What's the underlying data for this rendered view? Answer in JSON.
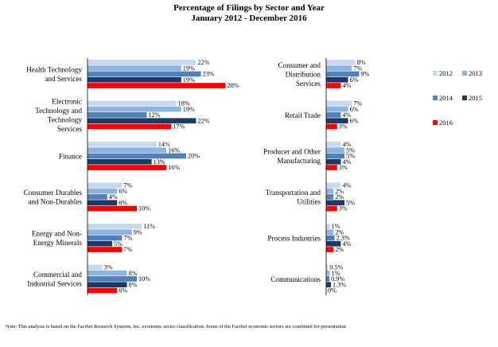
{
  "title": "Percentage of Filings by Sector and Year",
  "subtitle": "January 2012 - December 2016",
  "note": "Note: This analysis is based on the FactSet Research Systems, Inc. economic sector classification. Some of the FactSet economic sectors are combined for presentation.",
  "chart_data": {
    "type": "bar",
    "orientation": "horizontal",
    "title": "Percentage of Filings by Sector and Year",
    "subtitle": "January 2012 - December 2016",
    "legend_placement": "right",
    "grid": false,
    "series_names": [
      "2012",
      "2013",
      "2014",
      "2015",
      "2016"
    ],
    "series_colors": [
      "#c6d9f1",
      "#8db4e2",
      "#4f81bd",
      "#1f3864",
      "#ff0000"
    ],
    "panels": [
      {
        "xlim": [
          0,
          30
        ],
        "groups": [
          {
            "category": [
              "Health Technology",
              "and Services"
            ],
            "values": [
              22,
              19,
              23,
              19,
              28
            ],
            "labels": [
              "22%",
              "19%",
              "23%",
              "19%",
              "28%"
            ]
          },
          {
            "category": [
              "Electronic",
              "Technology and",
              "Technology",
              "Services"
            ],
            "values": [
              18,
              19,
              12,
              22,
              17
            ],
            "labels": [
              "18%",
              "19%",
              "12%",
              "22%",
              "17%"
            ]
          },
          {
            "category": [
              "Finance"
            ],
            "values": [
              14,
              16,
              20,
              13,
              16
            ],
            "labels": [
              "14%",
              "16%",
              "20%",
              "13%",
              "16%"
            ]
          },
          {
            "category": [
              "Consumer Durables",
              "and Non-Durables"
            ],
            "values": [
              7,
              6,
              4,
              6,
              10
            ],
            "labels": [
              "7%",
              "6%",
              "4%",
              "6%",
              "10%"
            ]
          },
          {
            "category": [
              "Energy and Non-",
              "Energy Minerals"
            ],
            "values": [
              11,
              9,
              7,
              5,
              7
            ],
            "labels": [
              "11%",
              "9%",
              "7%",
              "5%",
              "7%"
            ]
          },
          {
            "category": [
              "Commercial and",
              "Industrial Services"
            ],
            "values": [
              3,
              8,
              10,
              8,
              6
            ],
            "labels": [
              "3%",
              "8%",
              "10%",
              "8%",
              "6%"
            ]
          }
        ]
      },
      {
        "xlim": [
          0,
          30
        ],
        "groups": [
          {
            "category": [
              "Consumer and",
              "Distribution",
              "Services"
            ],
            "values": [
              8,
              7,
              9,
              6,
              4
            ],
            "labels": [
              "8%",
              "7%",
              "9%",
              "6%",
              "4%"
            ]
          },
          {
            "category": [
              "Retail Trade"
            ],
            "values": [
              7,
              6,
              4,
              6,
              3
            ],
            "labels": [
              "7%",
              "6%",
              "4%",
              "6%",
              "3%"
            ]
          },
          {
            "category": [
              "Producer and Other",
              "Manufacturing"
            ],
            "values": [
              4,
              5,
              5,
              4,
              3
            ],
            "labels": [
              "4%",
              "5%",
              "5%",
              "4%",
              "3%"
            ]
          },
          {
            "category": [
              "Transportation and",
              "Utilities"
            ],
            "values": [
              4,
              2,
              2,
              5,
              3
            ],
            "labels": [
              "4%",
              "2%",
              "2%",
              "5%",
              "3%"
            ]
          },
          {
            "category": [
              "Process Industries"
            ],
            "values": [
              1,
              2,
              2.3,
              4,
              2
            ],
            "labels": [
              "1%",
              "2%",
              "2.3%",
              "4%",
              "2%"
            ]
          },
          {
            "category": [
              "Communications"
            ],
            "values": [
              0.5,
              1,
              0.9,
              1.3,
              0
            ],
            "labels": [
              "0.5%",
              "1%",
              "0.9%",
              "1.3%",
              "0%"
            ]
          }
        ]
      }
    ]
  }
}
